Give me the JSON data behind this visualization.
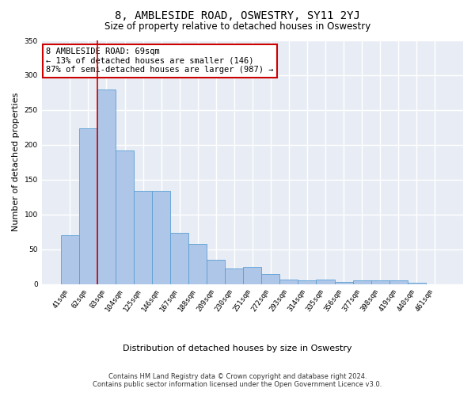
{
  "title": "8, AMBLESIDE ROAD, OSWESTRY, SY11 2YJ",
  "subtitle": "Size of property relative to detached houses in Oswestry",
  "xlabel_bottom": "Distribution of detached houses by size in Oswestry",
  "ylabel": "Number of detached properties",
  "categories": [
    "41sqm",
    "62sqm",
    "83sqm",
    "104sqm",
    "125sqm",
    "146sqm",
    "167sqm",
    "188sqm",
    "209sqm",
    "230sqm",
    "251sqm",
    "272sqm",
    "293sqm",
    "314sqm",
    "335sqm",
    "356sqm",
    "377sqm",
    "398sqm",
    "419sqm",
    "440sqm",
    "461sqm"
  ],
  "values": [
    70,
    224,
    280,
    192,
    134,
    134,
    73,
    58,
    35,
    22,
    25,
    14,
    6,
    5,
    6,
    3,
    5,
    5,
    5,
    2,
    0
  ],
  "bar_color": "#aec6e8",
  "bar_edge_color": "#5a9fd4",
  "background_color": "#e8edf5",
  "grid_color": "#ffffff",
  "red_line_x": 1.5,
  "annotation_text": "8 AMBLESIDE ROAD: 69sqm\n← 13% of detached houses are smaller (146)\n87% of semi-detached houses are larger (987) →",
  "annotation_box_color": "#ffffff",
  "annotation_box_edge_color": "#cc0000",
  "ylim": [
    0,
    350
  ],
  "yticks": [
    0,
    50,
    100,
    150,
    200,
    250,
    300,
    350
  ],
  "footer": "Contains HM Land Registry data © Crown copyright and database right 2024.\nContains public sector information licensed under the Open Government Licence v3.0.",
  "title_fontsize": 10,
  "subtitle_fontsize": 8.5,
  "ylabel_fontsize": 8,
  "xlabel_fontsize": 8,
  "tick_fontsize": 6.5,
  "annotation_fontsize": 7.5,
  "footer_fontsize": 6
}
